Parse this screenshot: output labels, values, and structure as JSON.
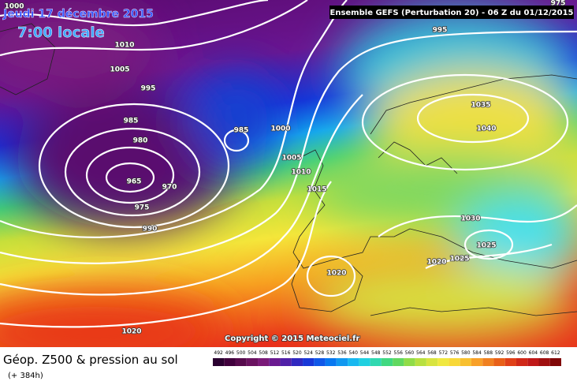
{
  "header": {
    "date": "Jeudi 17 décembre 2015",
    "time": "7:00 locale",
    "run": "Ensemble GEFS  (Perturbation 20)  - 06 Z du 01/12/2015"
  },
  "copyright": "Copyright © 2015 Meteociel.fr",
  "legend": {
    "title": "Géop. Z500 & pression au sol",
    "lead": "(+ 384h)",
    "scale": [
      492,
      496,
      500,
      504,
      508,
      512,
      516,
      520,
      524,
      528,
      532,
      536,
      540,
      544,
      548,
      552,
      556,
      560,
      564,
      568,
      572,
      576,
      580,
      584,
      588,
      592,
      596,
      600,
      604,
      608,
      612
    ]
  },
  "isobar_labels": [
    1000,
    1010,
    1005,
    995,
    985,
    980,
    965,
    970,
    975,
    990,
    985,
    1000,
    1005,
    1010,
    1015,
    1020,
    1020,
    995,
    975,
    1035,
    1040,
    1030,
    1025,
    1025,
    1020
  ]
}
